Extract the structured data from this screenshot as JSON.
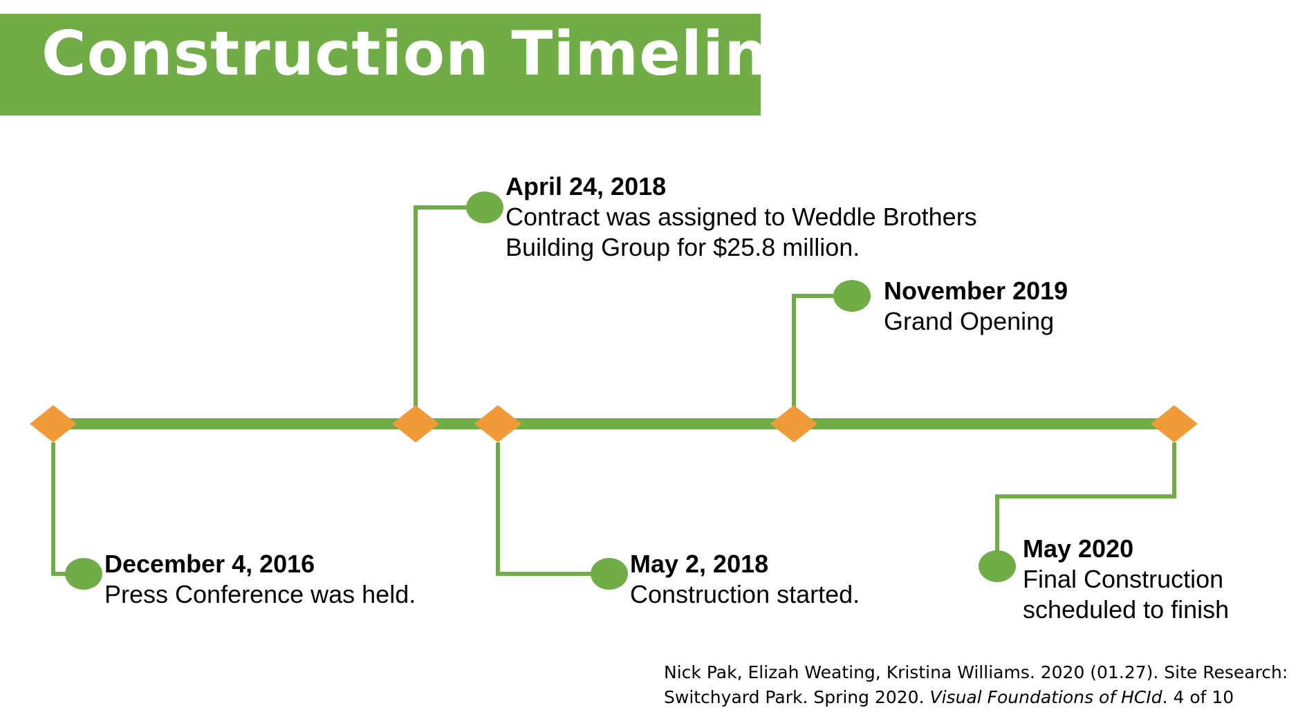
{
  "title": "Construction Timeline",
  "colors": {
    "banner": "#70ad47",
    "line": "#70ad47",
    "milestone": "#f19b38",
    "dot": "#70ad47"
  },
  "events": [
    {
      "date": "December 4, 2016",
      "desc": [
        "Press Conference was held."
      ]
    },
    {
      "date": "April 24, 2018",
      "desc": [
        "Contract was assigned to Weddle Brothers",
        "Building Group for $25.8 million."
      ]
    },
    {
      "date": "May 2, 2018",
      "desc": [
        "Construction started."
      ]
    },
    {
      "date": "November 2019",
      "desc": [
        "Grand Opening"
      ]
    },
    {
      "date": "May 2020",
      "desc": [
        "Final Construction",
        "scheduled to finish"
      ]
    }
  ],
  "citation": {
    "line1": "Nick Pak, Elizah Weating, Kristina Williams. 2020 (01.27). Site Research:",
    "line2_prefix": "Switchyard Park. Spring 2020. ",
    "line2_italic": "Visual Foundations of HCId",
    "line2_suffix": ". 4 of 10"
  }
}
